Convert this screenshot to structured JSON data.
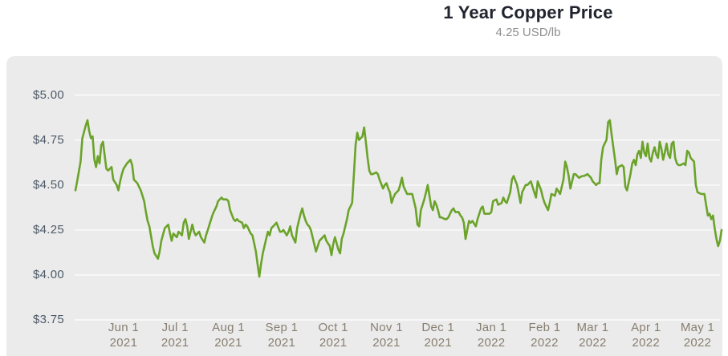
{
  "header": {
    "title": "1 Year Copper Price",
    "subtitle": "4.25 USD/lb"
  },
  "colors": {
    "line": "#6ba32a",
    "panel_bg": "#ebebeb",
    "grid": "#f8f8f8",
    "title": "#20242e",
    "subtitle": "#8f8f8f",
    "y_label": "#4e5a68",
    "x_label": "#877e70"
  },
  "chart_data": {
    "type": "line",
    "title": "1 Year Copper Price",
    "subtitle_current_price": "4.25 USD/lb",
    "unit": "USD/lb",
    "ylabel": "",
    "xlabel": "",
    "ylim": [
      3.75,
      5.0
    ],
    "grid": true,
    "legend": false,
    "y_ticks": [
      {
        "value": 5.0,
        "label": "$5.00"
      },
      {
        "value": 4.75,
        "label": "$4.75"
      },
      {
        "value": 4.5,
        "label": "$4.50"
      },
      {
        "value": 4.25,
        "label": "$4.25"
      },
      {
        "value": 4.0,
        "label": "$4.00"
      },
      {
        "value": 3.75,
        "label": "$3.75"
      }
    ],
    "x_ticks": [
      {
        "date": "2021-06-01",
        "label": "Jun 1",
        "year": "2021"
      },
      {
        "date": "2021-07-01",
        "label": "Jul 1",
        "year": "2021"
      },
      {
        "date": "2021-08-01",
        "label": "Aug 1",
        "year": "2021"
      },
      {
        "date": "2021-09-01",
        "label": "Sep 1",
        "year": "2021"
      },
      {
        "date": "2021-10-01",
        "label": "Oct 1",
        "year": "2021"
      },
      {
        "date": "2021-11-01",
        "label": "Nov 1",
        "year": "2021"
      },
      {
        "date": "2021-12-01",
        "label": "Dec 1",
        "year": "2021"
      },
      {
        "date": "2022-01-01",
        "label": "Jan 1",
        "year": "2022"
      },
      {
        "date": "2022-02-01",
        "label": "Feb 1",
        "year": "2022"
      },
      {
        "date": "2022-03-01",
        "label": "Mar 1",
        "year": "2022"
      },
      {
        "date": "2022-04-01",
        "label": "Apr 1",
        "year": "2022"
      },
      {
        "date": "2022-05-01",
        "label": "May 1",
        "year": "2022"
      }
    ],
    "points": [
      [
        "2021-05-04",
        4.47
      ],
      [
        "2021-05-05",
        4.52
      ],
      [
        "2021-05-07",
        4.63
      ],
      [
        "2021-05-08",
        4.76
      ],
      [
        "2021-05-10",
        4.83
      ],
      [
        "2021-05-11",
        4.86
      ],
      [
        "2021-05-12",
        4.8
      ],
      [
        "2021-05-13",
        4.76
      ],
      [
        "2021-05-14",
        4.77
      ],
      [
        "2021-05-15",
        4.64
      ],
      [
        "2021-05-16",
        4.6
      ],
      [
        "2021-05-17",
        4.66
      ],
      [
        "2021-05-18",
        4.62
      ],
      [
        "2021-05-19",
        4.72
      ],
      [
        "2021-05-20",
        4.74
      ],
      [
        "2021-05-22",
        4.59
      ],
      [
        "2021-05-23",
        4.58
      ],
      [
        "2021-05-25",
        4.6
      ],
      [
        "2021-05-26",
        4.53
      ],
      [
        "2021-05-28",
        4.5
      ],
      [
        "2021-05-29",
        4.47
      ],
      [
        "2021-05-30",
        4.52
      ],
      [
        "2021-05-31",
        4.56
      ],
      [
        "2021-06-01",
        4.59
      ],
      [
        "2021-06-03",
        4.62
      ],
      [
        "2021-06-05",
        4.64
      ],
      [
        "2021-06-06",
        4.61
      ],
      [
        "2021-06-07",
        4.53
      ],
      [
        "2021-06-09",
        4.51
      ],
      [
        "2021-06-10",
        4.49
      ],
      [
        "2021-06-11",
        4.47
      ],
      [
        "2021-06-13",
        4.41
      ],
      [
        "2021-06-14",
        4.35
      ],
      [
        "2021-06-15",
        4.3
      ],
      [
        "2021-06-16",
        4.27
      ],
      [
        "2021-06-18",
        4.16
      ],
      [
        "2021-06-19",
        4.12
      ],
      [
        "2021-06-21",
        4.09
      ],
      [
        "2021-06-22",
        4.13
      ],
      [
        "2021-06-23",
        4.19
      ],
      [
        "2021-06-25",
        4.26
      ],
      [
        "2021-06-27",
        4.28
      ],
      [
        "2021-06-28",
        4.23
      ],
      [
        "2021-06-29",
        4.19
      ],
      [
        "2021-06-30",
        4.23
      ],
      [
        "2021-07-02",
        4.21
      ],
      [
        "2021-07-03",
        4.24
      ],
      [
        "2021-07-05",
        4.22
      ],
      [
        "2021-07-06",
        4.29
      ],
      [
        "2021-07-07",
        4.31
      ],
      [
        "2021-07-08",
        4.27
      ],
      [
        "2021-07-09",
        4.2
      ],
      [
        "2021-07-11",
        4.28
      ],
      [
        "2021-07-12",
        4.24
      ],
      [
        "2021-07-13",
        4.22
      ],
      [
        "2021-07-15",
        4.24
      ],
      [
        "2021-07-16",
        4.21
      ],
      [
        "2021-07-18",
        4.18
      ],
      [
        "2021-07-19",
        4.22
      ],
      [
        "2021-07-20",
        4.25
      ],
      [
        "2021-07-22",
        4.31
      ],
      [
        "2021-07-23",
        4.34
      ],
      [
        "2021-07-25",
        4.38
      ],
      [
        "2021-07-26",
        4.41
      ],
      [
        "2021-07-28",
        4.43
      ],
      [
        "2021-07-29",
        4.42
      ],
      [
        "2021-07-31",
        4.42
      ],
      [
        "2021-08-01",
        4.41
      ],
      [
        "2021-08-02",
        4.36
      ],
      [
        "2021-08-04",
        4.31
      ],
      [
        "2021-08-05",
        4.3
      ],
      [
        "2021-08-06",
        4.31
      ],
      [
        "2021-08-07",
        4.3
      ],
      [
        "2021-08-09",
        4.29
      ],
      [
        "2021-08-10",
        4.26
      ],
      [
        "2021-08-11",
        4.28
      ],
      [
        "2021-08-12",
        4.27
      ],
      [
        "2021-08-13",
        4.25
      ],
      [
        "2021-08-14",
        4.23
      ],
      [
        "2021-08-15",
        4.22
      ],
      [
        "2021-08-17",
        4.13
      ],
      [
        "2021-08-18",
        4.06
      ],
      [
        "2021-08-19",
        3.99
      ],
      [
        "2021-08-20",
        4.06
      ],
      [
        "2021-08-21",
        4.12
      ],
      [
        "2021-08-23",
        4.2
      ],
      [
        "2021-08-24",
        4.24
      ],
      [
        "2021-08-25",
        4.22
      ],
      [
        "2021-08-26",
        4.26
      ],
      [
        "2021-08-28",
        4.28
      ],
      [
        "2021-08-29",
        4.29
      ],
      [
        "2021-08-31",
        4.24
      ],
      [
        "2021-09-01",
        4.24
      ],
      [
        "2021-09-02",
        4.25
      ],
      [
        "2021-09-04",
        4.22
      ],
      [
        "2021-09-05",
        4.24
      ],
      [
        "2021-09-06",
        4.27
      ],
      [
        "2021-09-07",
        4.22
      ],
      [
        "2021-09-09",
        4.18
      ],
      [
        "2021-09-10",
        4.26
      ],
      [
        "2021-09-11",
        4.3
      ],
      [
        "2021-09-12",
        4.34
      ],
      [
        "2021-09-13",
        4.37
      ],
      [
        "2021-09-14",
        4.33
      ],
      [
        "2021-09-15",
        4.3
      ],
      [
        "2021-09-16",
        4.28
      ],
      [
        "2021-09-17",
        4.27
      ],
      [
        "2021-09-18",
        4.25
      ],
      [
        "2021-09-20",
        4.17
      ],
      [
        "2021-09-21",
        4.13
      ],
      [
        "2021-09-22",
        4.16
      ],
      [
        "2021-09-23",
        4.19
      ],
      [
        "2021-09-25",
        4.21
      ],
      [
        "2021-09-26",
        4.22
      ],
      [
        "2021-09-27",
        4.19
      ],
      [
        "2021-09-29",
        4.16
      ],
      [
        "2021-09-30",
        4.11
      ],
      [
        "2021-10-01",
        4.17
      ],
      [
        "2021-10-02",
        4.21
      ],
      [
        "2021-10-04",
        4.14
      ],
      [
        "2021-10-05",
        4.12
      ],
      [
        "2021-10-06",
        4.2
      ],
      [
        "2021-10-07",
        4.23
      ],
      [
        "2021-10-09",
        4.31
      ],
      [
        "2021-10-10",
        4.36
      ],
      [
        "2021-10-11",
        4.38
      ],
      [
        "2021-10-12",
        4.4
      ],
      [
        "2021-10-13",
        4.55
      ],
      [
        "2021-10-14",
        4.72
      ],
      [
        "2021-10-15",
        4.79
      ],
      [
        "2021-10-16",
        4.75
      ],
      [
        "2021-10-18",
        4.77
      ],
      [
        "2021-10-19",
        4.82
      ],
      [
        "2021-10-20",
        4.74
      ],
      [
        "2021-10-21",
        4.65
      ],
      [
        "2021-10-22",
        4.58
      ],
      [
        "2021-10-23",
        4.56
      ],
      [
        "2021-10-24",
        4.56
      ],
      [
        "2021-10-26",
        4.57
      ],
      [
        "2021-10-27",
        4.56
      ],
      [
        "2021-10-28",
        4.53
      ],
      [
        "2021-10-30",
        4.48
      ],
      [
        "2021-10-31",
        4.5
      ],
      [
        "2021-11-01",
        4.51
      ],
      [
        "2021-11-02",
        4.48
      ],
      [
        "2021-11-03",
        4.46
      ],
      [
        "2021-11-04",
        4.4
      ],
      [
        "2021-11-05",
        4.43
      ],
      [
        "2021-11-06",
        4.45
      ],
      [
        "2021-11-08",
        4.47
      ],
      [
        "2021-11-09",
        4.5
      ],
      [
        "2021-11-10",
        4.54
      ],
      [
        "2021-11-11",
        4.49
      ],
      [
        "2021-11-12",
        4.47
      ],
      [
        "2021-11-13",
        4.45
      ],
      [
        "2021-11-15",
        4.45
      ],
      [
        "2021-11-16",
        4.45
      ],
      [
        "2021-11-18",
        4.37
      ],
      [
        "2021-11-19",
        4.28
      ],
      [
        "2021-11-20",
        4.27
      ],
      [
        "2021-11-21",
        4.36
      ],
      [
        "2021-11-22",
        4.39
      ],
      [
        "2021-11-23",
        4.42
      ],
      [
        "2021-11-24",
        4.46
      ],
      [
        "2021-11-25",
        4.5
      ],
      [
        "2021-11-27",
        4.38
      ],
      [
        "2021-11-28",
        4.36
      ],
      [
        "2021-11-29",
        4.41
      ],
      [
        "2021-11-30",
        4.39
      ],
      [
        "2021-12-01",
        4.36
      ],
      [
        "2021-12-02",
        4.32
      ],
      [
        "2021-12-03",
        4.32
      ],
      [
        "2021-12-05",
        4.31
      ],
      [
        "2021-12-06",
        4.31
      ],
      [
        "2021-12-07",
        4.32
      ],
      [
        "2021-12-09",
        4.36
      ],
      [
        "2021-12-10",
        4.37
      ],
      [
        "2021-12-11",
        4.35
      ],
      [
        "2021-12-13",
        4.35
      ],
      [
        "2021-12-14",
        4.33
      ],
      [
        "2021-12-15",
        4.32
      ],
      [
        "2021-12-16",
        4.29
      ],
      [
        "2021-12-17",
        4.2
      ],
      [
        "2021-12-19",
        4.3
      ],
      [
        "2021-12-20",
        4.29
      ],
      [
        "2021-12-21",
        4.3
      ],
      [
        "2021-12-23",
        4.27
      ],
      [
        "2021-12-24",
        4.31
      ],
      [
        "2021-12-26",
        4.37
      ],
      [
        "2021-12-27",
        4.38
      ],
      [
        "2021-12-28",
        4.34
      ],
      [
        "2021-12-29",
        4.34
      ],
      [
        "2021-12-31",
        4.34
      ],
      [
        "2022-01-01",
        4.35
      ],
      [
        "2022-01-02",
        4.41
      ],
      [
        "2022-01-04",
        4.42
      ],
      [
        "2022-01-05",
        4.39
      ],
      [
        "2022-01-07",
        4.4
      ],
      [
        "2022-01-08",
        4.43
      ],
      [
        "2022-01-09",
        4.41
      ],
      [
        "2022-01-10",
        4.4
      ],
      [
        "2022-01-12",
        4.46
      ],
      [
        "2022-01-13",
        4.53
      ],
      [
        "2022-01-14",
        4.55
      ],
      [
        "2022-01-16",
        4.5
      ],
      [
        "2022-01-17",
        4.45
      ],
      [
        "2022-01-18",
        4.4
      ],
      [
        "2022-01-19",
        4.46
      ],
      [
        "2022-01-21",
        4.5
      ],
      [
        "2022-01-22",
        4.5
      ],
      [
        "2022-01-24",
        4.52
      ],
      [
        "2022-01-26",
        4.46
      ],
      [
        "2022-01-27",
        4.43
      ],
      [
        "2022-01-28",
        4.52
      ],
      [
        "2022-01-30",
        4.47
      ],
      [
        "2022-01-31",
        4.43
      ],
      [
        "2022-02-01",
        4.4
      ],
      [
        "2022-02-02",
        4.38
      ],
      [
        "2022-02-03",
        4.36
      ],
      [
        "2022-02-04",
        4.4
      ],
      [
        "2022-02-05",
        4.45
      ],
      [
        "2022-02-07",
        4.44
      ],
      [
        "2022-02-08",
        4.48
      ],
      [
        "2022-02-10",
        4.45
      ],
      [
        "2022-02-12",
        4.53
      ],
      [
        "2022-02-13",
        4.63
      ],
      [
        "2022-02-14",
        4.6
      ],
      [
        "2022-02-15",
        4.55
      ],
      [
        "2022-02-16",
        4.48
      ],
      [
        "2022-02-18",
        4.56
      ],
      [
        "2022-02-19",
        4.56
      ],
      [
        "2022-02-20",
        4.55
      ],
      [
        "2022-02-21",
        4.54
      ],
      [
        "2022-02-23",
        4.55
      ],
      [
        "2022-02-24",
        4.55
      ],
      [
        "2022-02-26",
        4.56
      ],
      [
        "2022-02-28",
        4.54
      ],
      [
        "2022-03-01",
        4.52
      ],
      [
        "2022-03-02",
        4.51
      ],
      [
        "2022-03-03",
        4.5
      ],
      [
        "2022-03-04",
        4.51
      ],
      [
        "2022-03-05",
        4.51
      ],
      [
        "2022-03-06",
        4.64
      ],
      [
        "2022-03-07",
        4.71
      ],
      [
        "2022-03-08",
        4.73
      ],
      [
        "2022-03-09",
        4.75
      ],
      [
        "2022-03-10",
        4.85
      ],
      [
        "2022-03-11",
        4.86
      ],
      [
        "2022-03-12",
        4.78
      ],
      [
        "2022-03-13",
        4.71
      ],
      [
        "2022-03-14",
        4.64
      ],
      [
        "2022-03-15",
        4.56
      ],
      [
        "2022-03-16",
        4.6
      ],
      [
        "2022-03-18",
        4.61
      ],
      [
        "2022-03-19",
        4.6
      ],
      [
        "2022-03-20",
        4.49
      ],
      [
        "2022-03-21",
        4.47
      ],
      [
        "2022-03-23",
        4.56
      ],
      [
        "2022-03-24",
        4.62
      ],
      [
        "2022-03-25",
        4.64
      ],
      [
        "2022-03-26",
        4.61
      ],
      [
        "2022-03-27",
        4.67
      ],
      [
        "2022-03-28",
        4.69
      ],
      [
        "2022-03-29",
        4.65
      ],
      [
        "2022-03-30",
        4.74
      ],
      [
        "2022-03-31",
        4.68
      ],
      [
        "2022-04-01",
        4.66
      ],
      [
        "2022-04-02",
        4.73
      ],
      [
        "2022-04-03",
        4.65
      ],
      [
        "2022-04-04",
        4.63
      ],
      [
        "2022-04-05",
        4.68
      ],
      [
        "2022-04-06",
        4.71
      ],
      [
        "2022-04-07",
        4.67
      ],
      [
        "2022-04-08",
        4.65
      ],
      [
        "2022-04-09",
        4.74
      ],
      [
        "2022-04-10",
        4.7
      ],
      [
        "2022-04-11",
        4.64
      ],
      [
        "2022-04-12",
        4.68
      ],
      [
        "2022-04-13",
        4.73
      ],
      [
        "2022-04-14",
        4.67
      ],
      [
        "2022-04-15",
        4.65
      ],
      [
        "2022-04-16",
        4.73
      ],
      [
        "2022-04-17",
        4.74
      ],
      [
        "2022-04-18",
        4.65
      ],
      [
        "2022-04-19",
        4.62
      ],
      [
        "2022-04-20",
        4.61
      ],
      [
        "2022-04-21",
        4.61
      ],
      [
        "2022-04-23",
        4.62
      ],
      [
        "2022-04-24",
        4.61
      ],
      [
        "2022-04-25",
        4.69
      ],
      [
        "2022-04-26",
        4.68
      ],
      [
        "2022-04-27",
        4.65
      ],
      [
        "2022-04-28",
        4.64
      ],
      [
        "2022-04-29",
        4.63
      ],
      [
        "2022-04-30",
        4.5
      ],
      [
        "2022-05-01",
        4.46
      ],
      [
        "2022-05-03",
        4.45
      ],
      [
        "2022-05-04",
        4.45
      ],
      [
        "2022-05-05",
        4.45
      ],
      [
        "2022-05-06",
        4.39
      ],
      [
        "2022-05-07",
        4.33
      ],
      [
        "2022-05-08",
        4.34
      ],
      [
        "2022-05-09",
        4.31
      ],
      [
        "2022-05-10",
        4.33
      ],
      [
        "2022-05-11",
        4.26
      ],
      [
        "2022-05-12",
        4.2
      ],
      [
        "2022-05-13",
        4.16
      ],
      [
        "2022-05-14",
        4.19
      ],
      [
        "2022-05-15",
        4.25
      ]
    ]
  }
}
